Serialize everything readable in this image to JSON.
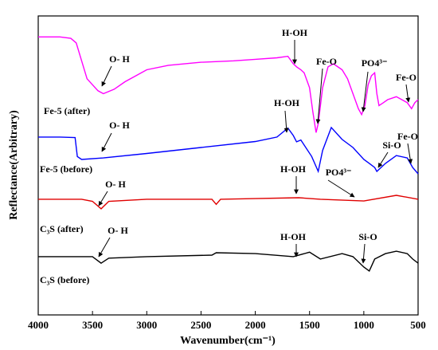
{
  "chart_data": {
    "type": "line",
    "xlabel": "Wavenumber(cm⁻¹)",
    "ylabel": "Reflectance(Arbitrary)",
    "xlim": [
      4000,
      500
    ],
    "ylim": [
      0,
      100
    ],
    "xticks": [
      4000,
      3500,
      3000,
      2500,
      2000,
      1500,
      1000,
      500
    ],
    "series": [
      {
        "name": "Fe-5 (after)",
        "color": "#ff00ff",
        "x": [
          4000,
          3800,
          3700,
          3650,
          3600,
          3550,
          3450,
          3400,
          3300,
          3200,
          3100,
          3000,
          2800,
          2500,
          2200,
          2000,
          1800,
          1700,
          1650,
          1620,
          1580,
          1550,
          1500,
          1470,
          1440,
          1420,
          1380,
          1330,
          1280,
          1200,
          1150,
          1100,
          1050,
          1020,
          990,
          960,
          930,
          900,
          880,
          860,
          820,
          780,
          700,
          650,
          600,
          560,
          530,
          500
        ],
        "values": [
          93,
          93,
          92.5,
          91,
          85,
          79,
          75,
          74,
          75.5,
          78,
          80,
          82,
          83.5,
          84.5,
          85,
          85.5,
          86,
          86.5,
          84,
          83,
          82,
          81,
          76,
          68,
          61,
          64,
          76,
          83,
          84,
          82,
          79,
          74,
          69,
          67,
          70,
          77,
          80,
          81,
          74,
          70,
          71,
          72,
          73,
          72,
          71,
          69,
          71,
          72
        ]
      },
      {
        "name": "Fe-5 (before)",
        "color": "#0000ff",
        "x": [
          4000,
          3800,
          3660,
          3640,
          3600,
          3400,
          3000,
          2500,
          2000,
          1800,
          1700,
          1650,
          1620,
          1580,
          1480,
          1420,
          1380,
          1300,
          1200,
          1100,
          1000,
          950,
          900,
          880,
          800,
          700,
          600,
          550,
          500
        ],
        "values": [
          59.5,
          59.5,
          59.3,
          53,
          52,
          52.5,
          54,
          56,
          58,
          59.5,
          62.5,
          60,
          57.9,
          58.5,
          53,
          48,
          55,
          62.7,
          58.7,
          56,
          52,
          50.7,
          49.3,
          48,
          50.7,
          53.3,
          52.5,
          49.3,
          47.2
        ]
      },
      {
        "name": "C₃S (after)",
        "color": "#e00000",
        "x": [
          4000,
          3600,
          3500,
          3420,
          3350,
          3000,
          2400,
          2360,
          2320,
          2000,
          1600,
          1400,
          1000,
          700,
          500
        ],
        "values": [
          38.7,
          38.7,
          38,
          35.5,
          38,
          38.7,
          38.7,
          37,
          38.7,
          38.9,
          39.2,
          38.7,
          38.1,
          40,
          38.7
        ]
      },
      {
        "name": "C₃S (before)",
        "color": "#000000",
        "x": [
          4000,
          3500,
          3420,
          3350,
          3000,
          2400,
          2360,
          2000,
          1650,
          1500,
          1400,
          1200,
          1100,
          1000,
          950,
          900,
          800,
          700,
          600,
          550,
          500
        ],
        "values": [
          19.5,
          19.5,
          17.3,
          19,
          19.5,
          20,
          20.8,
          20.5,
          19.5,
          21,
          18.7,
          20.5,
          19.5,
          16,
          14.7,
          18.7,
          20.5,
          21.3,
          20.5,
          18.7,
          17.3
        ]
      }
    ],
    "annotations": [
      "O- H",
      "H-OH",
      "Fe-O",
      "PO4³⁻",
      "Fe-O",
      "O- H",
      "H-OH",
      "Si-O",
      "Fe-O",
      "PO4³⁻",
      "H-OH",
      "O- H",
      "H-OH",
      "Si-O",
      "O- H"
    ]
  }
}
